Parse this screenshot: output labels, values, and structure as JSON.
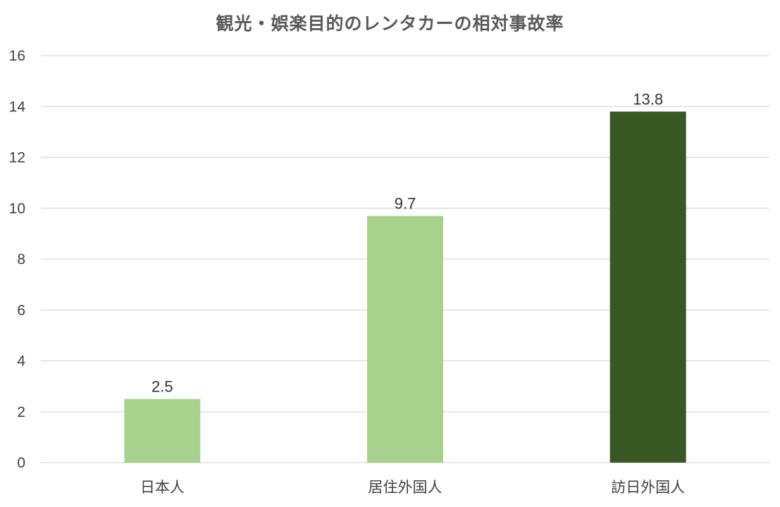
{
  "chart_data": {
    "type": "bar",
    "title": "観光・娯楽目的のレンタカーの相対事故率",
    "xlabel": "",
    "ylabel": "",
    "categories": [
      "日本人",
      "居住外国人",
      "訪日外国人"
    ],
    "values": [
      2.5,
      9.7,
      13.8
    ],
    "data_labels": [
      "2.5",
      "9.7",
      "13.8"
    ],
    "bar_colors": [
      "#a9d18e",
      "#a9d18e",
      "#385723"
    ],
    "ylim": [
      0,
      16
    ],
    "yticks": [
      0,
      2,
      4,
      6,
      8,
      10,
      12,
      14,
      16
    ],
    "grid": true,
    "legend": "none"
  },
  "colors": {
    "gridline": "#d9d9d9",
    "axis_text": "#404040",
    "title_text": "#595959"
  }
}
